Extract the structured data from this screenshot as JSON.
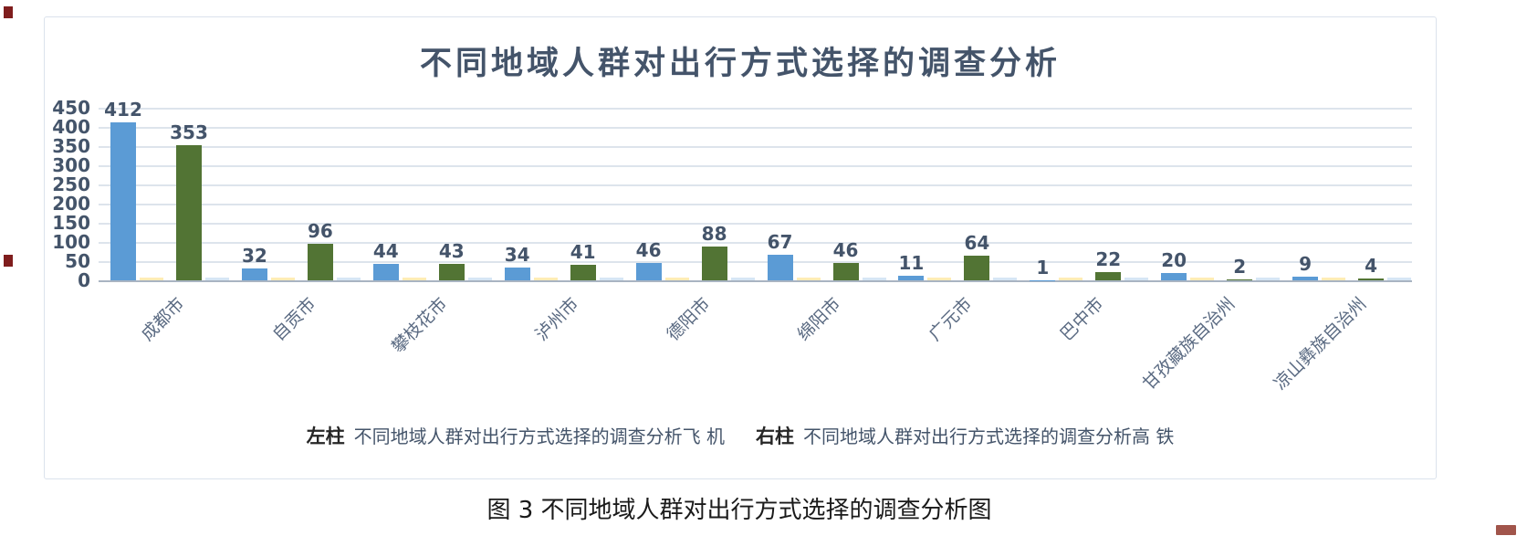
{
  "page": {
    "caption": "图 3 不同地域人群对出行方式选择的调查分析图"
  },
  "chart": {
    "title": "不同地域人群对出行方式选择的调查分析",
    "legend": [
      {
        "prefix": "左柱",
        "label": "不同地域人群对出行方式选择的调查分析飞 机"
      },
      {
        "prefix": "右柱",
        "label": "不同地域人群对出行方式选择的调查分析高 铁"
      }
    ]
  },
  "chart_data": {
    "type": "bar",
    "title": "不同地域人群对出行方式选择的调查分析",
    "categories": [
      "成都市",
      "自贡市",
      "攀枝花市",
      "泸州市",
      "德阳市",
      "绵阳市",
      "广元市",
      "巴中市",
      "甘孜藏族自治州",
      "凉山彝族自治州"
    ],
    "series": [
      {
        "name": "不同地域人群对出行方式选择的调查分析飞 机",
        "legend_prefix": "左柱",
        "color": "#5b9bd5",
        "values": [
          412,
          32,
          44,
          34,
          46,
          67,
          11,
          1,
          20,
          9
        ]
      },
      {
        "name": "不同地域人群对出行方式选择的调查分析高 铁",
        "legend_prefix": "右柱",
        "color": "#527434",
        "values": [
          353,
          96,
          43,
          41,
          88,
          46,
          64,
          22,
          2,
          4
        ]
      }
    ],
    "faint_series_colors": [
      "#ffe9a8",
      "#cfe2f3"
    ],
    "y_axis": {
      "min": 0,
      "max": 450,
      "step": 50,
      "ticks": [
        450,
        400,
        350,
        300,
        250,
        200,
        150,
        100,
        50,
        0
      ]
    },
    "grid": true,
    "data_labels": true,
    "legend_position": "bottom",
    "xlabel": "",
    "ylabel": "",
    "colors": {
      "title_text": "#44546A",
      "axis_text": "#44546A",
      "gridline": "#dde4ec",
      "baseline": "#a9b4c2",
      "panel_border": "#dbe2ec"
    }
  }
}
